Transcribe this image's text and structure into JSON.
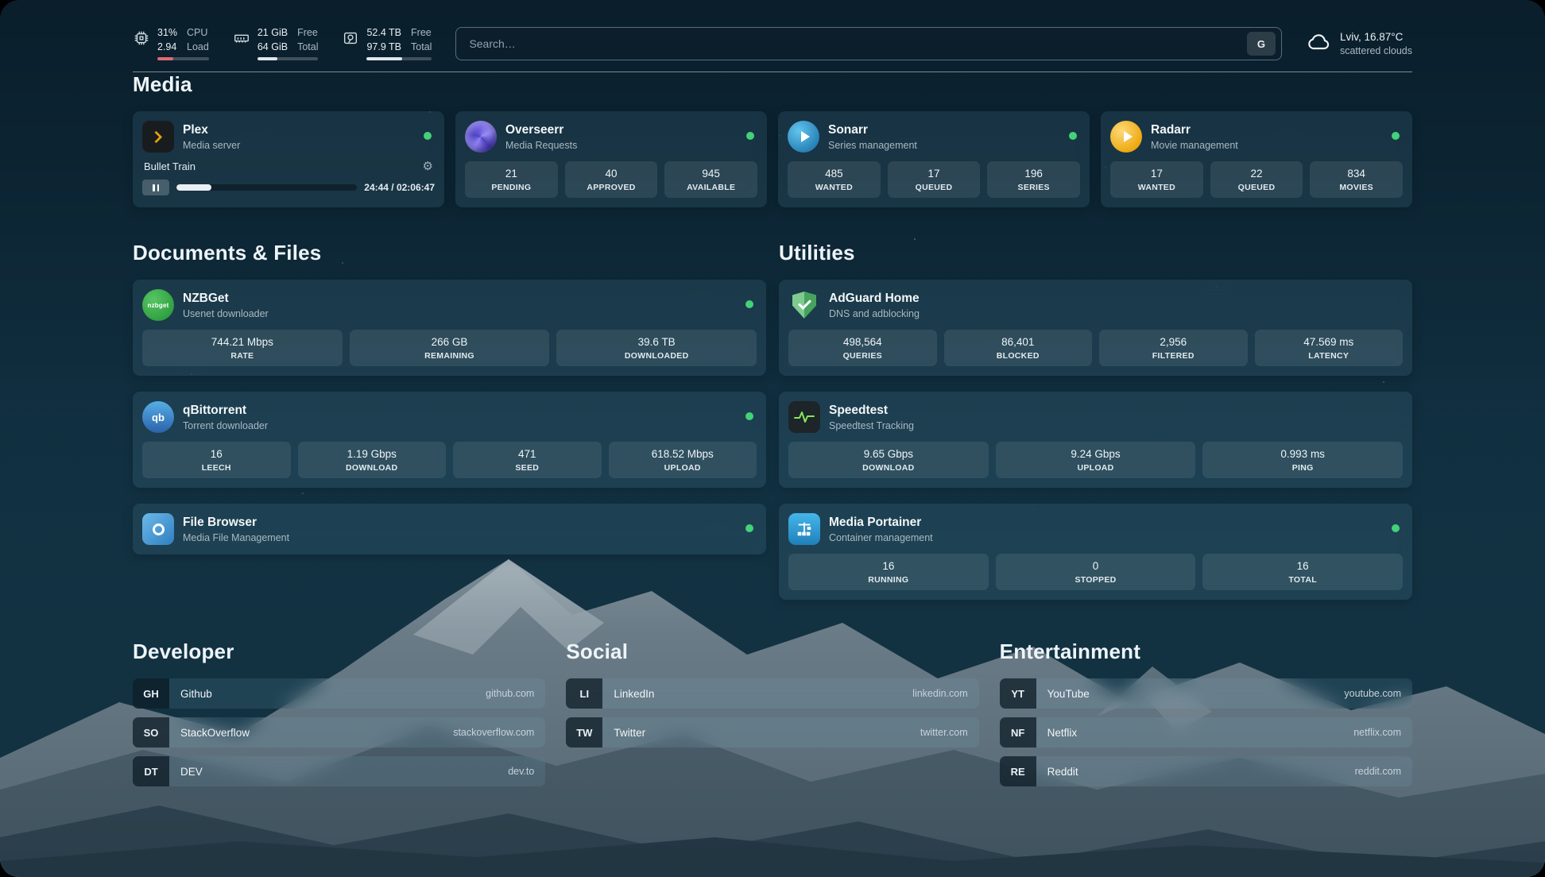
{
  "colors": {
    "status_dot": "#43d17a",
    "plex_accent": "#e5a00d",
    "cpu_bar": "#e06a72",
    "card_bg": "rgba(125,180,205,0.12)"
  },
  "status": {
    "cpu": {
      "icon": "cpu-icon",
      "percent": "31%",
      "load": "2.94",
      "label_top": "CPU",
      "label_bottom": "Load",
      "bar_pct": 31
    },
    "memory": {
      "icon": "memory-icon",
      "free": "21 GiB",
      "total": "64 GiB",
      "label_top": "Free",
      "label_bottom": "Total",
      "bar_pct": 33
    },
    "disk": {
      "icon": "disk-icon",
      "free": "52.4 TB",
      "total": "97.9 TB",
      "label_top": "Free",
      "label_bottom": "Total",
      "bar_pct": 54
    },
    "search": {
      "placeholder": "Search…",
      "button": "G"
    },
    "weather": {
      "icon": "cloud-icon",
      "location": "Lviv, 16.87°C",
      "condition": "scattered clouds"
    }
  },
  "media": {
    "heading": "Media",
    "plex": {
      "icon": "plex-icon",
      "title": "Plex",
      "subtitle": "Media server",
      "now_playing": "Bullet Train",
      "time": "24:44 / 02:06:47",
      "progress_pct": 19.5
    },
    "overseerr": {
      "icon": "overseerr-icon",
      "title": "Overseerr",
      "subtitle": "Media Requests",
      "stats": [
        {
          "value": "21",
          "label": "PENDING"
        },
        {
          "value": "40",
          "label": "APPROVED"
        },
        {
          "value": "945",
          "label": "AVAILABLE"
        }
      ]
    },
    "sonarr": {
      "icon": "sonarr-icon",
      "title": "Sonarr",
      "subtitle": "Series management",
      "stats": [
        {
          "value": "485",
          "label": "WANTED"
        },
        {
          "value": "17",
          "label": "QUEUED"
        },
        {
          "value": "196",
          "label": "SERIES"
        }
      ]
    },
    "radarr": {
      "icon": "radarr-icon",
      "title": "Radarr",
      "subtitle": "Movie management",
      "stats": [
        {
          "value": "17",
          "label": "WANTED"
        },
        {
          "value": "22",
          "label": "QUEUED"
        },
        {
          "value": "834",
          "label": "MOVIES"
        }
      ]
    }
  },
  "documents": {
    "heading": "Documents & Files",
    "nzbget": {
      "icon": "nzbget-icon",
      "title": "NZBGet",
      "subtitle": "Usenet downloader",
      "stats": [
        {
          "value": "744.21 Mbps",
          "label": "RATE"
        },
        {
          "value": "266 GB",
          "label": "REMAINING"
        },
        {
          "value": "39.6 TB",
          "label": "DOWNLOADED"
        }
      ]
    },
    "qbittorrent": {
      "icon": "qbittorrent-icon",
      "title": "qBittorrent",
      "subtitle": "Torrent downloader",
      "stats": [
        {
          "value": "16",
          "label": "LEECH"
        },
        {
          "value": "1.19 Gbps",
          "label": "DOWNLOAD"
        },
        {
          "value": "471",
          "label": "SEED"
        },
        {
          "value": "618.52 Mbps",
          "label": "UPLOAD"
        }
      ]
    },
    "filebrowser": {
      "icon": "filebrowser-icon",
      "title": "File Browser",
      "subtitle": "Media File Management"
    }
  },
  "utilities": {
    "heading": "Utilities",
    "adguard": {
      "icon": "adguard-icon",
      "title": "AdGuard Home",
      "subtitle": "DNS and adblocking",
      "stats": [
        {
          "value": "498,564",
          "label": "QUERIES"
        },
        {
          "value": "86,401",
          "label": "BLOCKED"
        },
        {
          "value": "2,956",
          "label": "FILTERED"
        },
        {
          "value": "47.569 ms",
          "label": "LATENCY"
        }
      ]
    },
    "speedtest": {
      "icon": "speedtest-icon",
      "title": "Speedtest",
      "subtitle": "Speedtest Tracking",
      "stats": [
        {
          "value": "9.65 Gbps",
          "label": "DOWNLOAD"
        },
        {
          "value": "9.24 Gbps",
          "label": "UPLOAD"
        },
        {
          "value": "0.993 ms",
          "label": "PING"
        }
      ]
    },
    "portainer": {
      "icon": "portainer-icon",
      "title": "Media Portainer",
      "subtitle": "Container management",
      "stats": [
        {
          "value": "16",
          "label": "RUNNING"
        },
        {
          "value": "0",
          "label": "STOPPED"
        },
        {
          "value": "16",
          "label": "TOTAL"
        }
      ]
    }
  },
  "bookmarks": {
    "developer": {
      "heading": "Developer",
      "items": [
        {
          "abbr": "GH",
          "name": "Github",
          "url": "github.com"
        },
        {
          "abbr": "SO",
          "name": "StackOverflow",
          "url": "stackoverflow.com"
        },
        {
          "abbr": "DT",
          "name": "DEV",
          "url": "dev.to"
        }
      ]
    },
    "social": {
      "heading": "Social",
      "items": [
        {
          "abbr": "LI",
          "name": "LinkedIn",
          "url": "linkedin.com"
        },
        {
          "abbr": "TW",
          "name": "Twitter",
          "url": "twitter.com"
        }
      ]
    },
    "entertainment": {
      "heading": "Entertainment",
      "items": [
        {
          "abbr": "YT",
          "name": "YouTube",
          "url": "youtube.com"
        },
        {
          "abbr": "NF",
          "name": "Netflix",
          "url": "netflix.com"
        },
        {
          "abbr": "RE",
          "name": "Reddit",
          "url": "reddit.com"
        }
      ]
    }
  }
}
